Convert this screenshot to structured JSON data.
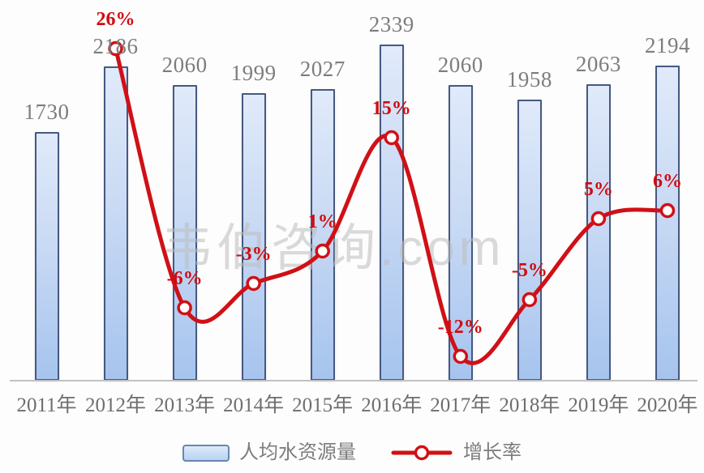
{
  "watermark": {
    "text": "韦伯咨询.com"
  },
  "colors": {
    "bar_fill_top": "#e0eafa",
    "bar_fill_bottom": "#a6c4ee",
    "bar_border": "#465980",
    "line": "#d01016",
    "pct_label": "#d20b10",
    "value_label": "#7d7d7d",
    "axis_label": "#6e6e6e",
    "axis_line": "#c1c1c1",
    "watermark": "#bdbdbd",
    "legend_text": "#7d7d7d"
  },
  "chart_data": {
    "type": "combo-bar-line",
    "title": "",
    "xlabel": "",
    "ylabel": "",
    "grid": false,
    "legend_position": "bottom",
    "categories": [
      "2011年",
      "2012年",
      "2013年",
      "2014年",
      "2015年",
      "2016年",
      "2017年",
      "2018年",
      "2019年",
      "2020年"
    ],
    "series": [
      {
        "name": "人均水资源量",
        "type": "bar",
        "values": [
          1730,
          2186,
          2060,
          1999,
          2027,
          2339,
          2060,
          1958,
          2063,
          2194
        ],
        "value_labels": [
          "1730",
          "2186",
          "2060",
          "1999",
          "2027",
          "2339",
          "2060",
          "1958",
          "2063",
          "2194"
        ]
      },
      {
        "name": "增长率",
        "type": "line",
        "unit": "%",
        "values": [
          null,
          26,
          -6,
          -3,
          1,
          15,
          -12,
          -5,
          5,
          6
        ],
        "value_labels": [
          "",
          "26%",
          "-6%",
          "-3%",
          "1%",
          "15%",
          "-12%",
          "-5%",
          "5%",
          "6%"
        ]
      }
    ]
  }
}
